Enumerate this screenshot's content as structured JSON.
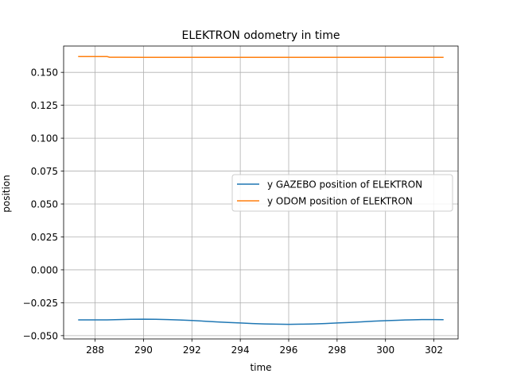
{
  "chart_data": {
    "type": "line",
    "title": "ELEKTRON odometry in time",
    "xlabel": "time",
    "ylabel": "position",
    "xlim": [
      286.7,
      303.0
    ],
    "ylim": [
      -0.0525,
      0.17
    ],
    "xticks": [
      288,
      290,
      292,
      294,
      296,
      298,
      300,
      302
    ],
    "yticks": [
      -0.05,
      -0.025,
      0.0,
      0.025,
      0.05,
      0.075,
      0.1,
      0.125,
      0.15
    ],
    "ytick_labels": [
      "−0.050",
      "−0.025",
      "0.000",
      "0.025",
      "0.050",
      "0.075",
      "0.100",
      "0.125",
      "0.150"
    ],
    "grid": true,
    "legend_position": "center-right",
    "series": [
      {
        "name": "y GAZEBO position of ELEKTRON",
        "color": "#1f77b4",
        "x": [
          287.3,
          288.0,
          288.5,
          289.0,
          289.5,
          290.0,
          290.5,
          291.0,
          291.5,
          292.0,
          292.5,
          293.0,
          293.5,
          294.0,
          294.5,
          295.0,
          295.5,
          296.0,
          296.5,
          297.0,
          297.5,
          298.0,
          298.5,
          299.0,
          299.5,
          300.0,
          300.5,
          301.0,
          301.5,
          302.0,
          302.4
        ],
        "y": [
          -0.038,
          -0.038,
          -0.038,
          -0.0378,
          -0.0376,
          -0.0375,
          -0.0376,
          -0.0378,
          -0.0381,
          -0.0385,
          -0.039,
          -0.0395,
          -0.04,
          -0.0404,
          -0.0408,
          -0.0411,
          -0.0413,
          -0.0414,
          -0.0413,
          -0.0411,
          -0.0408,
          -0.0404,
          -0.04,
          -0.0395,
          -0.039,
          -0.0386,
          -0.0383,
          -0.038,
          -0.0378,
          -0.0378,
          -0.0379
        ]
      },
      {
        "name": "y ODOM position of ELEKTRON",
        "color": "#ff7f0e",
        "x": [
          287.3,
          288.0,
          288.5,
          288.6,
          289.0,
          290.0,
          292.0,
          294.0,
          296.0,
          298.0,
          300.0,
          302.0,
          302.4
        ],
        "y": [
          0.162,
          0.162,
          0.162,
          0.1615,
          0.1615,
          0.1614,
          0.1614,
          0.1614,
          0.1614,
          0.1614,
          0.1614,
          0.1614,
          0.1614
        ]
      }
    ]
  }
}
